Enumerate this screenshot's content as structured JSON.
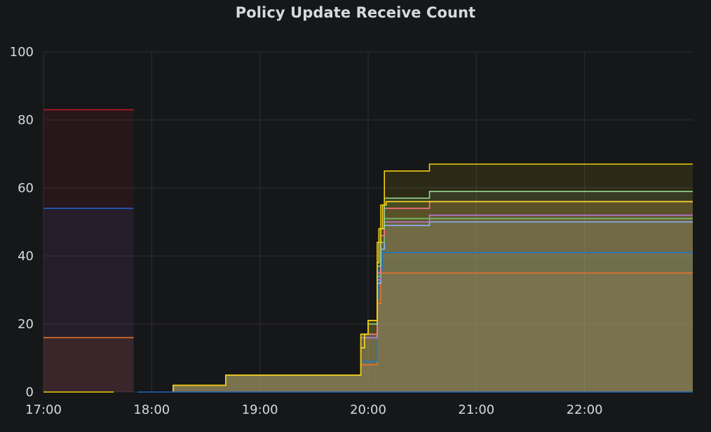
{
  "panel": {
    "title": "Policy Update Receive Count"
  },
  "chart_data": {
    "type": "area",
    "title": "Policy Update Receive Count",
    "xlabel": "",
    "ylabel": "",
    "x_axis": {
      "unit": "time",
      "range": [
        "17:00",
        "23:00"
      ],
      "ticks": [
        "17:00",
        "18:00",
        "19:00",
        "20:00",
        "21:00",
        "22:00"
      ]
    },
    "y_axis": {
      "range": [
        0,
        100
      ],
      "ticks": [
        0,
        20,
        40,
        60,
        80,
        100
      ]
    },
    "grid": true,
    "legend": "none",
    "series": [
      {
        "color": "#c4162a",
        "points": [
          [
            "17:00",
            83
          ],
          [
            "17:50",
            83
          ]
        ]
      },
      {
        "color": "#1f60c4",
        "points": [
          [
            "17:00",
            54
          ],
          [
            "17:50",
            54
          ]
        ]
      },
      {
        "color": "#e0752d",
        "points": [
          [
            "17:00",
            16
          ],
          [
            "17:50",
            16
          ]
        ]
      },
      {
        "color": "#e0752d",
        "points": [
          [
            "18:12",
            0
          ],
          [
            "18:12",
            2
          ],
          [
            "18:41",
            2
          ],
          [
            "18:41",
            5
          ],
          [
            "19:56",
            5
          ],
          [
            "19:56",
            8
          ],
          [
            "20:05",
            8
          ],
          [
            "20:05",
            26
          ],
          [
            "20:07",
            26
          ],
          [
            "20:07",
            35
          ],
          [
            "23:00",
            35
          ]
        ]
      },
      {
        "color": "#1f78c1",
        "points": [
          [
            "18:12",
            0
          ],
          [
            "18:12",
            2
          ],
          [
            "18:41",
            2
          ],
          [
            "18:41",
            5
          ],
          [
            "19:56",
            5
          ],
          [
            "19:56",
            9
          ],
          [
            "20:05",
            9
          ],
          [
            "20:05",
            28
          ],
          [
            "20:06",
            28
          ],
          [
            "20:06",
            36
          ],
          [
            "20:08",
            36
          ],
          [
            "20:08",
            41
          ],
          [
            "23:00",
            41
          ]
        ]
      },
      {
        "color": "#8ab8ff",
        "points": [
          [
            "18:12",
            0
          ],
          [
            "18:12",
            2
          ],
          [
            "18:41",
            2
          ],
          [
            "18:41",
            5
          ],
          [
            "19:56",
            5
          ],
          [
            "19:56",
            16
          ],
          [
            "20:05",
            16
          ],
          [
            "20:05",
            32
          ],
          [
            "20:07",
            32
          ],
          [
            "20:07",
            42
          ],
          [
            "20:09",
            42
          ],
          [
            "20:09",
            49
          ],
          [
            "20:34",
            49
          ],
          [
            "20:34",
            50
          ],
          [
            "23:00",
            50
          ]
        ]
      },
      {
        "color": "#b877d9",
        "points": [
          [
            "18:12",
            0
          ],
          [
            "18:12",
            2
          ],
          [
            "18:41",
            2
          ],
          [
            "18:41",
            5
          ],
          [
            "19:56",
            5
          ],
          [
            "19:56",
            16
          ],
          [
            "20:05",
            16
          ],
          [
            "20:05",
            33
          ],
          [
            "20:07",
            33
          ],
          [
            "20:07",
            44
          ],
          [
            "20:09",
            44
          ],
          [
            "20:09",
            50
          ],
          [
            "20:34",
            50
          ],
          [
            "20:34",
            52
          ],
          [
            "23:00",
            52
          ]
        ]
      },
      {
        "color": "#73bf69",
        "points": [
          [
            "18:12",
            0
          ],
          [
            "18:12",
            2
          ],
          [
            "18:41",
            2
          ],
          [
            "18:41",
            5
          ],
          [
            "19:56",
            5
          ],
          [
            "19:56",
            17
          ],
          [
            "20:05",
            17
          ],
          [
            "20:05",
            34
          ],
          [
            "20:07",
            34
          ],
          [
            "20:07",
            44
          ],
          [
            "20:09",
            44
          ],
          [
            "20:09",
            51
          ],
          [
            "23:00",
            51
          ]
        ]
      },
      {
        "color": "#ff7383",
        "points": [
          [
            "18:12",
            0
          ],
          [
            "18:12",
            2
          ],
          [
            "18:41",
            2
          ],
          [
            "18:41",
            5
          ],
          [
            "19:56",
            5
          ],
          [
            "19:56",
            17
          ],
          [
            "20:05",
            17
          ],
          [
            "20:05",
            35
          ],
          [
            "20:07",
            35
          ],
          [
            "20:07",
            46
          ],
          [
            "20:09",
            46
          ],
          [
            "20:09",
            54
          ],
          [
            "20:34",
            54
          ],
          [
            "20:34",
            56
          ],
          [
            "23:00",
            56
          ]
        ]
      },
      {
        "color": "#96d98d",
        "points": [
          [
            "18:12",
            0
          ],
          [
            "18:12",
            2
          ],
          [
            "18:41",
            2
          ],
          [
            "18:41",
            5
          ],
          [
            "19:56",
            5
          ],
          [
            "19:56",
            17
          ],
          [
            "20:00",
            17
          ],
          [
            "20:00",
            20
          ],
          [
            "20:05",
            20
          ],
          [
            "20:05",
            37
          ],
          [
            "20:07",
            37
          ],
          [
            "20:07",
            48
          ],
          [
            "20:09",
            48
          ],
          [
            "20:09",
            57
          ],
          [
            "20:34",
            57
          ],
          [
            "20:34",
            59
          ],
          [
            "23:00",
            59
          ]
        ]
      },
      {
        "color": "#fade2a",
        "points": [
          [
            "18:12",
            0
          ],
          [
            "18:12",
            2
          ],
          [
            "18:41",
            2
          ],
          [
            "18:41",
            5
          ],
          [
            "19:56",
            5
          ],
          [
            "19:56",
            13
          ],
          [
            "19:58",
            13
          ],
          [
            "19:58",
            17
          ],
          [
            "20:00",
            17
          ],
          [
            "20:00",
            21
          ],
          [
            "20:05",
            21
          ],
          [
            "20:05",
            38
          ],
          [
            "20:06",
            38
          ],
          [
            "20:06",
            48
          ],
          [
            "20:08",
            48
          ],
          [
            "20:08",
            55
          ],
          [
            "20:10",
            55
          ],
          [
            "20:10",
            56
          ],
          [
            "23:00",
            56
          ]
        ]
      },
      {
        "color": "#f2cc0c",
        "points": [
          [
            "18:12",
            0
          ],
          [
            "18:12",
            2
          ],
          [
            "18:41",
            2
          ],
          [
            "18:41",
            5
          ],
          [
            "19:56",
            5
          ],
          [
            "19:56",
            17
          ],
          [
            "20:00",
            17
          ],
          [
            "20:00",
            21
          ],
          [
            "20:05",
            21
          ],
          [
            "20:05",
            44
          ],
          [
            "20:07",
            44
          ],
          [
            "20:07",
            55
          ],
          [
            "20:09",
            55
          ],
          [
            "20:09",
            65
          ],
          [
            "20:34",
            65
          ],
          [
            "20:34",
            67
          ],
          [
            "23:00",
            67
          ]
        ]
      },
      {
        "color": "#f2cc0c",
        "points": [
          [
            "17:00",
            0
          ],
          [
            "17:39",
            0
          ]
        ]
      },
      {
        "color": "#1f60c4",
        "points": [
          [
            "17:52",
            0
          ],
          [
            "23:00",
            0
          ]
        ]
      }
    ]
  }
}
